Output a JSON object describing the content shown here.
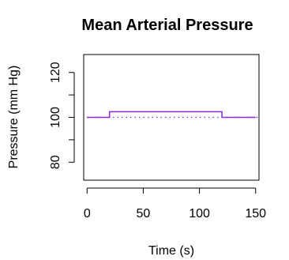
{
  "chart_data": {
    "type": "line",
    "title": "Mean Arterial Pressure",
    "xlabel": "Time (s)",
    "ylabel": "Pressure (mm Hg)",
    "xlim": [
      -3,
      153
    ],
    "ylim": [
      72,
      128
    ],
    "x_ticks": [
      0,
      50,
      100,
      150
    ],
    "y_ticks": [
      80,
      90,
      100,
      110,
      120
    ],
    "y_tick_labels": [
      "80",
      "",
      "100",
      "",
      "120"
    ],
    "series": [
      {
        "color": "#8a2be2",
        "line_style": "solid",
        "x": [
          0,
          20,
          20,
          120,
          120,
          150
        ],
        "y": [
          100,
          100,
          102.5,
          102.5,
          100,
          100
        ]
      }
    ],
    "reference_line": {
      "y": 100,
      "color": "#8a2be2",
      "line_style": "dotted"
    },
    "grid": false,
    "legend": false
  }
}
